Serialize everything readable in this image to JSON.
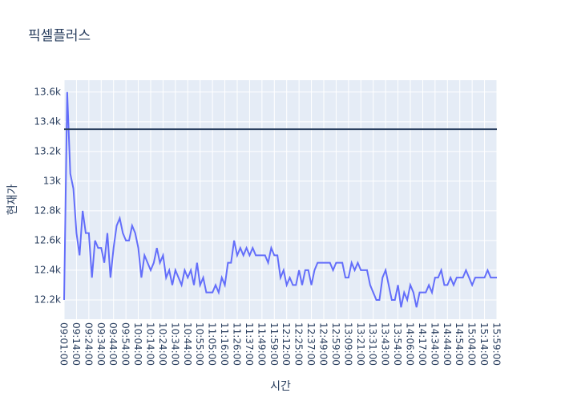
{
  "chart_data": {
    "type": "line",
    "title": "픽셀플러스",
    "x_label": "시간",
    "y_label": "현재가",
    "categories": [
      "09:01:00",
      null,
      null,
      null,
      "09:14:00",
      null,
      null,
      null,
      "09:24:00",
      null,
      null,
      null,
      "09:34:00",
      null,
      null,
      null,
      "09:44:00",
      null,
      null,
      null,
      "09:54:00",
      null,
      null,
      null,
      "10:04:00",
      null,
      null,
      null,
      "10:14:00",
      null,
      null,
      null,
      "10:24:00",
      null,
      null,
      null,
      "10:34:00",
      null,
      null,
      null,
      "10:44:00",
      null,
      null,
      null,
      "10:55:00",
      null,
      null,
      null,
      "11:05:00",
      null,
      null,
      null,
      "11:16:00",
      null,
      null,
      null,
      "11:26:00",
      null,
      null,
      null,
      "11:37:00",
      null,
      null,
      null,
      "11:49:00",
      null,
      null,
      null,
      "11:59:00",
      null,
      null,
      null,
      "12:12:00",
      null,
      null,
      null,
      "12:25:00",
      null,
      null,
      null,
      "12:37:00",
      null,
      null,
      null,
      "12:49:00",
      null,
      null,
      null,
      "12:59:00",
      null,
      null,
      null,
      "13:09:00",
      null,
      null,
      null,
      "13:21:00",
      null,
      null,
      null,
      "13:31:00",
      null,
      null,
      null,
      "13:43:00",
      null,
      null,
      null,
      "13:54:00",
      null,
      null,
      null,
      "14:06:00",
      null,
      null,
      null,
      "14:17:00",
      null,
      null,
      null,
      "14:34:00",
      null,
      null,
      null,
      "14:44:00",
      null,
      null,
      null,
      "14:54:00",
      null,
      null,
      null,
      "15:04:00",
      null,
      null,
      null,
      "15:14:00",
      null,
      null,
      null,
      "15:59:00"
    ],
    "values": [
      12200,
      13600,
      13050,
      12950,
      12650,
      12500,
      12800,
      12650,
      12650,
      12350,
      12600,
      12550,
      12550,
      12450,
      12650,
      12350,
      12550,
      12700,
      12750,
      12650,
      12600,
      12600,
      12700,
      12650,
      12550,
      12350,
      12500,
      12450,
      12400,
      12450,
      12550,
      12450,
      12500,
      12350,
      12400,
      12300,
      12400,
      12350,
      12300,
      12400,
      12350,
      12400,
      12300,
      12450,
      12300,
      12350,
      12250,
      12250,
      12250,
      12300,
      12250,
      12350,
      12300,
      12450,
      12450,
      12600,
      12500,
      12550,
      12500,
      12550,
      12500,
      12550,
      12500,
      12500,
      12500,
      12500,
      12450,
      12550,
      12500,
      12500,
      12350,
      12400,
      12300,
      12350,
      12300,
      12300,
      12400,
      12300,
      12400,
      12400,
      12300,
      12400,
      12450,
      12450,
      12450,
      12450,
      12450,
      12400,
      12450,
      12450,
      12450,
      12350,
      12350,
      12450,
      12400,
      12450,
      12400,
      12400,
      12400,
      12300,
      12250,
      12200,
      12200,
      12350,
      12400,
      12300,
      12200,
      12200,
      12300,
      12150,
      12250,
      12200,
      12300,
      12250,
      12150,
      12250,
      12250,
      12250,
      12300,
      12250,
      12350,
      12350,
      12400,
      12300,
      12300,
      12350,
      12300,
      12350,
      12350,
      12350,
      12400,
      12350,
      12300,
      12350,
      12350,
      12350,
      12350,
      12400,
      12350,
      12350,
      12350
    ],
    "color": "#636efa",
    "reference_line": {
      "value": 13350,
      "color": "#2a3f5f"
    },
    "ylim": [
      12070,
      13680
    ],
    "yticks": [
      {
        "value": 12200,
        "label": "12.2k"
      },
      {
        "value": 12400,
        "label": "12.4k"
      },
      {
        "value": 12600,
        "label": "12.6k"
      },
      {
        "value": 12800,
        "label": "12.8k"
      },
      {
        "value": 13000,
        "label": "13k"
      },
      {
        "value": 13200,
        "label": "13.2k"
      },
      {
        "value": 13400,
        "label": "13.4k"
      },
      {
        "value": 13600,
        "label": "13.6k"
      }
    ],
    "grid": true
  }
}
